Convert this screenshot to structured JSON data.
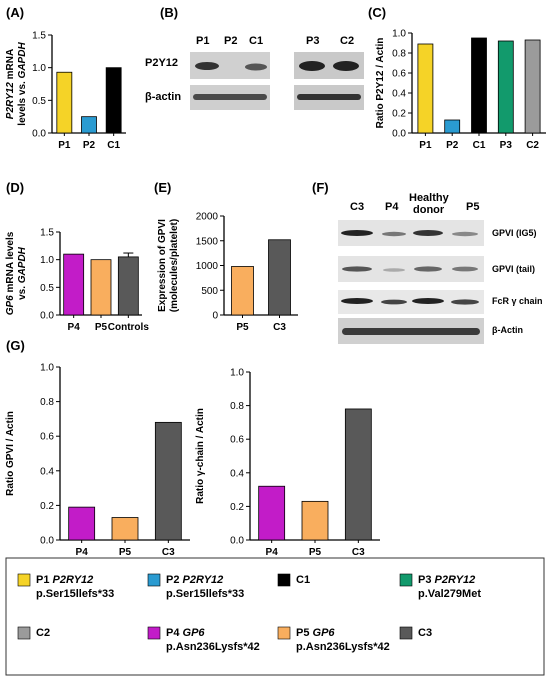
{
  "panels": {
    "A": "(A)",
    "B": "(B)",
    "C": "(C)",
    "D": "(D)",
    "E": "(E)",
    "F": "(F)",
    "G": "(G)"
  },
  "colors": {
    "P1": "#f5d327",
    "P2": "#2a9bd1",
    "C1": "#000000",
    "P3": "#129a6c",
    "C2": "#9b9b9b",
    "P4": "#c21cc8",
    "P5": "#f9ae5e",
    "C3": "#595959"
  },
  "chart_data": [
    {
      "id": "A",
      "type": "bar",
      "ylabel": [
        "P2RY12 mRNA",
        "levels vs. GAPDH"
      ],
      "ylim": [
        0,
        1.5
      ],
      "yticks": [
        "0.0",
        "0.5",
        "1.0",
        "1.5"
      ],
      "categories": [
        "P1",
        "P2",
        "C1"
      ],
      "values": [
        0.93,
        0.25,
        1.0
      ],
      "colors": [
        "P1",
        "P2",
        "C1"
      ]
    },
    {
      "id": "C",
      "type": "bar",
      "ylabel": [
        "Ratio P2Y12 / Actin"
      ],
      "ylim": [
        0,
        1.0
      ],
      "yticks": [
        "0.0",
        "0.2",
        "0.4",
        "0.6",
        "0.8",
        "1.0"
      ],
      "categories": [
        "P1",
        "P2",
        "C1",
        "P3",
        "C2"
      ],
      "values": [
        0.89,
        0.13,
        0.95,
        0.92,
        0.93
      ],
      "colors": [
        "P1",
        "P2",
        "C1",
        "P3",
        "C2"
      ]
    },
    {
      "id": "D",
      "type": "bar",
      "ylabel": [
        "GP6 mRNA levels",
        "vs. GAPDH"
      ],
      "ylim": [
        0,
        1.5
      ],
      "yticks": [
        "0.0",
        "0.5",
        "1.0",
        "1.5"
      ],
      "categories": [
        "P4",
        "P5",
        "Controls"
      ],
      "values": [
        1.1,
        1.0,
        1.05
      ],
      "error": [
        0,
        0,
        0.07
      ],
      "colors": [
        "P4",
        "P5",
        "C3"
      ]
    },
    {
      "id": "E",
      "type": "bar",
      "ylabel": [
        "Expression of GPVI",
        "(molecules/platelet)"
      ],
      "ylim": [
        0,
        2000
      ],
      "yticks": [
        "0",
        "500",
        "1000",
        "1500",
        "2000"
      ],
      "categories": [
        "P5",
        "C3"
      ],
      "values": [
        980,
        1520
      ],
      "colors": [
        "P5",
        "C3"
      ]
    },
    {
      "id": "G1",
      "type": "bar",
      "ylabel": [
        "Ratio GPVI / Actin"
      ],
      "ylim": [
        0,
        1.0
      ],
      "yticks": [
        "0.0",
        "0.2",
        "0.4",
        "0.6",
        "0.8",
        "1.0"
      ],
      "categories": [
        "P4",
        "P5",
        "C3"
      ],
      "values": [
        0.19,
        0.13,
        0.68
      ],
      "colors": [
        "P4",
        "P5",
        "C3"
      ]
    },
    {
      "id": "G2",
      "type": "bar",
      "ylabel": [
        "Ratio γ-chain / Actin"
      ],
      "ylim": [
        0,
        1.0
      ],
      "yticks": [
        "0.0",
        "0.2",
        "0.4",
        "0.6",
        "0.8",
        "1.0"
      ],
      "categories": [
        "P4",
        "P5",
        "C3"
      ],
      "values": [
        0.32,
        0.23,
        0.78
      ],
      "colors": [
        "P4",
        "P5",
        "C3"
      ]
    }
  ],
  "blot_B": {
    "lanes_left": [
      "P1",
      "P2",
      "C1"
    ],
    "lanes_right": [
      "P3",
      "C2"
    ],
    "rows": [
      "P2Y12",
      "β-actin"
    ]
  },
  "blot_F": {
    "lanes": [
      "C3",
      "P4",
      "Healthy",
      "donor",
      "P5"
    ],
    "rows": [
      "GPVI (IG5)",
      "GPVI (tail)",
      "FcR γ chain",
      "β-Actin"
    ]
  },
  "legend": [
    {
      "key": "P1",
      "line1": "P1 ",
      "italic": "P2RY12",
      "line2": "p.Ser15llefs*33"
    },
    {
      "key": "P2",
      "line1": "P2 ",
      "italic": "P2RY12",
      "line2": "p.Ser15llefs*33"
    },
    {
      "key": "C1",
      "line1": "C1",
      "italic": "",
      "line2": ""
    },
    {
      "key": "P3",
      "line1": "P3 ",
      "italic": "P2RY12",
      "line2": "p.Val279Met"
    },
    {
      "key": "C2",
      "line1": "C2",
      "italic": "",
      "line2": ""
    },
    {
      "key": "P4",
      "line1": "P4 ",
      "italic": "GP6",
      "line2": "p.Asn236Lysfs*42"
    },
    {
      "key": "P5",
      "line1": "P5 ",
      "italic": "GP6",
      "line2": "p.Asn236Lysfs*42"
    },
    {
      "key": "C3",
      "line1": "C3",
      "italic": "",
      "line2": ""
    }
  ]
}
